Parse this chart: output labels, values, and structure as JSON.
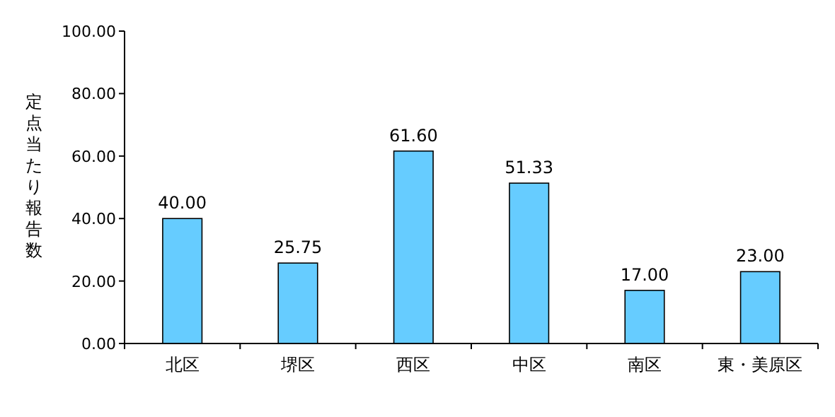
{
  "chart_data": {
    "type": "bar",
    "ylabel": "定点当たり報告数",
    "categories": [
      "北区",
      "堺区",
      "西区",
      "中区",
      "南区",
      "東・美原区"
    ],
    "values": [
      40.0,
      25.75,
      61.6,
      51.33,
      17.0,
      23.0
    ],
    "value_labels": [
      "40.00",
      "25.75",
      "61.60",
      "51.33",
      "17.00",
      "23.00"
    ],
    "color": "#66ccff",
    "ylim": [
      0,
      100
    ],
    "yticks": [
      {
        "value": 0,
        "label": "0.00"
      },
      {
        "value": 20,
        "label": "20.00"
      },
      {
        "value": 40,
        "label": "40.00"
      },
      {
        "value": 60,
        "label": "60.00"
      },
      {
        "value": 80,
        "label": "80.00"
      },
      {
        "value": 100,
        "label": "100.00"
      }
    ],
    "grid": false
  }
}
